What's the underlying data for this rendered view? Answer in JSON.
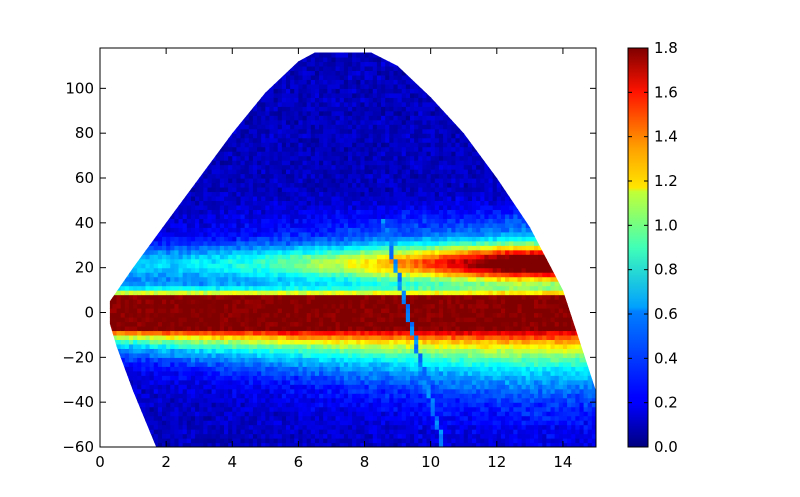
{
  "chart_data": {
    "type": "heatmap",
    "title": "",
    "xlabel": "",
    "ylabel": "",
    "xlim": [
      0,
      15
    ],
    "ylim": [
      -60,
      118
    ],
    "x_ticks": [
      0,
      2,
      4,
      6,
      8,
      10,
      12,
      14
    ],
    "x_tick_labels": [
      "0",
      "2",
      "4",
      "6",
      "8",
      "10",
      "12",
      "14"
    ],
    "y_ticks": [
      -60,
      -40,
      -20,
      0,
      20,
      40,
      60,
      80,
      100
    ],
    "y_tick_labels": [
      "−60",
      "−40",
      "−20",
      "0",
      "20",
      "40",
      "60",
      "80",
      "100"
    ],
    "grid": false,
    "colormap": "jet",
    "colorbar": {
      "min": 0.0,
      "max": 1.8,
      "ticks": [
        0.0,
        0.2,
        0.4,
        0.6,
        0.8,
        1.0,
        1.2,
        1.4,
        1.6,
        1.8
      ],
      "tick_labels": [
        "0.0",
        "0.2",
        "0.4",
        "0.6",
        "0.8",
        "1.0",
        "1.2",
        "1.4",
        "1.6",
        "1.8"
      ]
    },
    "data_region": {
      "upper_boundary": [
        [
          0.3,
          5
        ],
        [
          1,
          20
        ],
        [
          2,
          40
        ],
        [
          3,
          60
        ],
        [
          4,
          80
        ],
        [
          5,
          98
        ],
        [
          6,
          112
        ],
        [
          6.5,
          116
        ],
        [
          8.2,
          116
        ],
        [
          9,
          110
        ],
        [
          10,
          96
        ],
        [
          11,
          80
        ],
        [
          12,
          60
        ],
        [
          13,
          38
        ],
        [
          14,
          10
        ],
        [
          15,
          -35
        ]
      ],
      "lower_boundary": [
        [
          0.3,
          5
        ],
        [
          0.3,
          -5
        ],
        [
          0.5,
          -15
        ],
        [
          1,
          -35
        ],
        [
          1.7,
          -60
        ]
      ]
    },
    "bands": [
      {
        "y_center": 0,
        "half_width": 7,
        "value": 1.8
      },
      {
        "y_center": 22,
        "half_width": 9,
        "value_range": [
          0.5,
          1.8
        ]
      }
    ],
    "diagonal_artifact": [
      [
        8.6,
        40
      ],
      [
        10.2,
        -50
      ]
    ]
  }
}
